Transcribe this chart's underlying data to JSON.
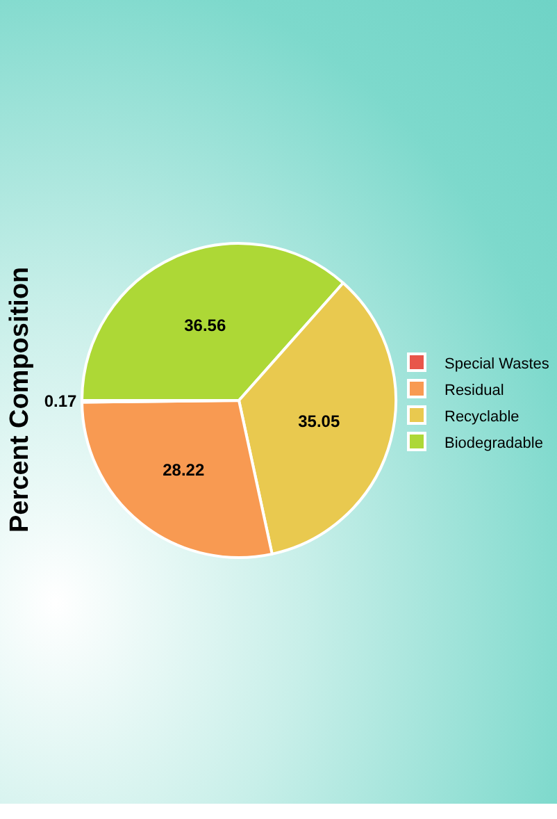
{
  "chart_data": {
    "type": "pie",
    "title": "Percent Composition",
    "categories": [
      "Biodegradable",
      "Recyclable",
      "Residual",
      "Special Wastes"
    ],
    "values": [
      36.56,
      35.05,
      28.22,
      0.17
    ],
    "colors": [
      "#add836",
      "#e9c94f",
      "#f89a52",
      "#e8564a"
    ],
    "data_labels": true,
    "legend": "right"
  }
}
